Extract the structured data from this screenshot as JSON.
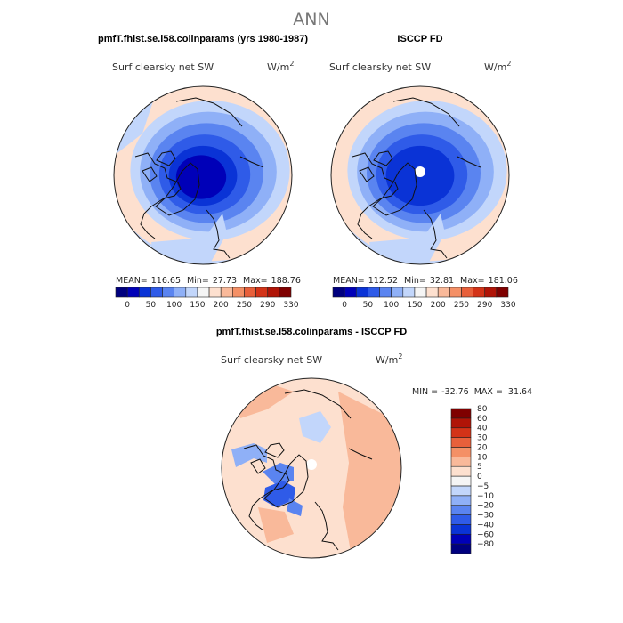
{
  "page_title": "ANN",
  "chart_data": [
    {
      "type": "heatmap",
      "projection": "north polar stereographic",
      "title": "pmfT.fhist.se.l58.colinparams (yrs 1980-1987)",
      "left_label": "Surf clearsky net SW",
      "units_label": "W/m",
      "units_superscript": "2",
      "stats": {
        "mean_label": "MEAN=",
        "mean": "116.65",
        "min_label": "Min=",
        "min": "27.73",
        "max_label": "Max=",
        "max": "188.76"
      },
      "colorbar": {
        "orientation": "horizontal",
        "levels": [
          0,
          50,
          100,
          150,
          200,
          250,
          290,
          330
        ],
        "level_labels": [
          "0",
          "50",
          "100",
          "150",
          "200",
          "250",
          "290",
          "330"
        ],
        "colors": [
          "#00007f",
          "#0000b8",
          "#0a33d6",
          "#2f5be8",
          "#5a84f0",
          "#8fb0f7",
          "#c2d6fb",
          "#f5f5f5",
          "#fde0cf",
          "#f9b99a",
          "#f49066",
          "#e8603b",
          "#d33318",
          "#b01407",
          "#7f0000"
        ]
      },
      "field_rings": [
        {
          "level": "230",
          "color": "#fde0cf"
        },
        {
          "level": "175",
          "color": "#c2d6fb"
        },
        {
          "level": "150",
          "color": "#8fb0f7"
        },
        {
          "level": "125",
          "color": "#5a84f0"
        },
        {
          "level": "100",
          "color": "#2f5be8"
        },
        {
          "level": "75",
          "color": "#0a33d6"
        },
        {
          "level": "55",
          "color": "#0000b8"
        }
      ]
    },
    {
      "type": "heatmap",
      "projection": "north polar stereographic",
      "title": "ISCCP FD",
      "left_label": "Surf clearsky net SW",
      "units_label": "W/m",
      "units_superscript": "2",
      "stats": {
        "mean_label": "MEAN=",
        "mean": "112.52",
        "min_label": "Min=",
        "min": "32.81",
        "max_label": "Max=",
        "max": "181.06"
      },
      "colorbar": {
        "orientation": "horizontal",
        "levels": [
          0,
          50,
          100,
          150,
          200,
          250,
          290,
          330
        ],
        "level_labels": [
          "0",
          "50",
          "100",
          "150",
          "200",
          "250",
          "290",
          "330"
        ],
        "colors": [
          "#00007f",
          "#0000b8",
          "#0a33d6",
          "#2f5be8",
          "#5a84f0",
          "#8fb0f7",
          "#c2d6fb",
          "#f5f5f5",
          "#fde0cf",
          "#f9b99a",
          "#f49066",
          "#e8603b",
          "#d33318",
          "#b01407",
          "#7f0000"
        ]
      },
      "field_rings": [
        {
          "level": "230",
          "color": "#fde0cf"
        },
        {
          "level": "175",
          "color": "#c2d6fb"
        },
        {
          "level": "150",
          "color": "#8fb0f7"
        },
        {
          "level": "125",
          "color": "#5a84f0"
        },
        {
          "level": "100",
          "color": "#2f5be8"
        },
        {
          "level": "75",
          "color": "#0a33d6"
        }
      ]
    },
    {
      "type": "heatmap",
      "projection": "north polar stereographic",
      "title": "pmfT.fhist.se.l58.colinparams - ISCCP FD",
      "left_label": "Surf clearsky net SW",
      "units_label": "W/m",
      "units_superscript": "2",
      "stats": {
        "min_label": "MIN =",
        "min": "-32.76",
        "max_label": "MAX =",
        "max": "31.64"
      },
      "colorbar": {
        "orientation": "vertical",
        "levels": [
          -80,
          -60,
          -40,
          -30,
          -20,
          -10,
          -5,
          0,
          5,
          10,
          20,
          30,
          40,
          60,
          80
        ],
        "level_labels": [
          "−80",
          "−60",
          "−40",
          "−30",
          "−20",
          "−10",
          "−5",
          "0",
          "5",
          "10",
          "20",
          "30",
          "40",
          "60",
          "80"
        ],
        "colors": [
          "#00007f",
          "#0000b8",
          "#0a33d6",
          "#2f5be8",
          "#5a84f0",
          "#8fb0f7",
          "#c2d6fb",
          "#f5f5f5",
          "#fde0cf",
          "#f9b99a",
          "#f49066",
          "#e8603b",
          "#d33318",
          "#b01407",
          "#7f0000"
        ]
      }
    }
  ]
}
